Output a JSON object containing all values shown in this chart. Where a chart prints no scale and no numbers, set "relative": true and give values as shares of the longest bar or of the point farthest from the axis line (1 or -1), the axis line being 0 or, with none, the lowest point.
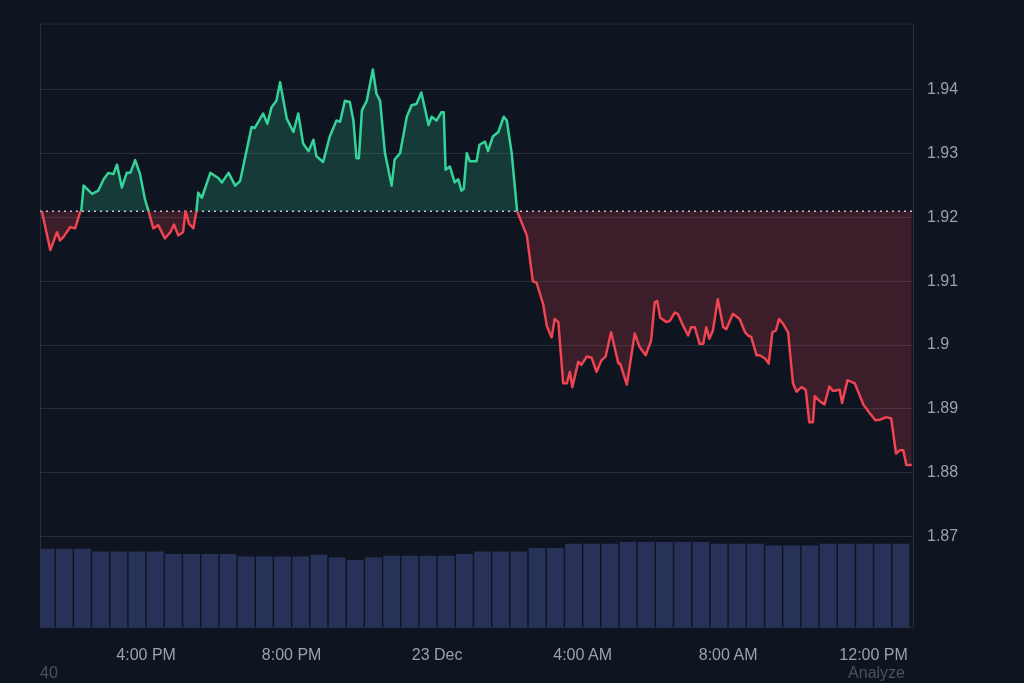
{
  "chart_data": [
    {
      "type": "line",
      "xlim": [
        "--12-22T13:05",
        "--12-23T13:05"
      ],
      "ylim": [
        1.8558,
        1.9504
      ],
      "yticks": [
        1.87,
        1.88,
        1.89,
        1.9,
        1.91,
        1.92,
        1.93,
        1.94
      ],
      "grid": "y",
      "tick_labels": "y",
      "marker": "none",
      "line_style": "solid",
      "ref_lines": [
        {
          "axis": "y",
          "value": 1.921,
          "color": "#c8ccd4",
          "line_style": "dotted"
        }
      ],
      "annotations": [
        "40",
        "Analyze"
      ],
      "x": [
        "--12-22T13:08",
        "--12-22T13:22",
        "--12-22T13:33",
        "--12-22T13:38",
        "--12-22T13:44",
        "--12-22T13:55",
        "--12-22T14:03",
        "--12-22T14:11",
        "--12-22T14:13",
        "--12-22T14:17",
        "--12-22T14:31",
        "--12-22T14:41",
        "--12-22T14:50",
        "--12-22T14:58",
        "--12-22T15:06",
        "--12-22T15:12",
        "--12-22T15:20",
        "--12-22T15:28",
        "--12-22T15:34",
        "--12-22T15:42",
        "--12-22T15:50",
        "--12-22T15:58",
        "--12-22T16:04",
        "--12-22T16:12",
        "--12-22T16:20",
        "--12-22T16:31",
        "--12-22T16:40",
        "--12-22T16:46",
        "--12-22T16:53",
        "--12-22T17:01",
        "--12-22T17:05",
        "--12-22T17:11",
        "--12-22T17:18",
        "--12-22T17:23",
        "--12-22T17:26",
        "--12-22T17:32",
        "--12-22T17:46",
        "--12-22T17:59",
        "--12-22T18:05",
        "--12-22T18:16",
        "--12-22T18:27",
        "--12-22T18:35",
        "--12-22T18:54",
        "--12-22T18:59",
        "--12-22T19:13",
        "--12-22T19:20",
        "--12-22T19:27",
        "--12-22T19:35",
        "--12-22T19:41",
        "--12-22T19:52",
        "--12-22T20:03",
        "--12-22T20:11",
        "--12-22T20:19",
        "--12-22T20:28",
        "--12-22T20:36",
        "--12-22T20:41",
        "--12-22T20:52",
        "--12-22T21:03",
        "--12-22T21:14",
        "--12-22T21:20",
        "--12-22T21:28",
        "--12-22T21:36",
        "--12-22T21:42",
        "--12-22T21:47",
        "--12-22T21:51",
        "--12-22T21:56",
        "--12-22T22:04",
        "--12-22T22:14",
        "--12-22T22:20",
        "--12-22T22:26",
        "--12-22T22:34",
        "--12-22T22:45",
        "--12-22T22:50",
        "--12-22T22:59",
        "--12-22T23:10",
        "--12-22T23:18",
        "--12-22T23:26",
        "--12-22T23:34",
        "--12-22T23:46",
        "--12-22T23:51",
        "--12-22T23:59",
        "--12-23T00:07",
        "--12-23T00:11",
        "--12-23T00:14",
        "--12-23T00:21",
        "--12-23T00:29",
        "--12-23T00:35",
        "--12-23T00:40",
        "--12-23T00:44",
        "--12-23T00:49",
        "--12-23T00:54",
        "--12-23T01:05",
        "--12-23T01:10",
        "--12-23T01:19",
        "--12-23T01:24",
        "--12-23T01:32",
        "--12-23T01:41",
        "--12-23T01:50",
        "--12-23T01:55",
        "--12-23T02:03",
        "--12-23T02:12",
        "--12-23T02:28",
        "--12-23T02:38",
        "--12-23T02:44",
        "--12-23T02:55",
        "--12-23T03:01",
        "--12-23T03:09",
        "--12-23T03:14",
        "--12-23T03:20",
        "--12-23T03:28",
        "--12-23T03:34",
        "--12-23T03:39",
        "--12-23T03:43",
        "--12-23T03:53",
        "--12-23T03:58",
        "--12-23T04:07",
        "--12-23T04:15",
        "--12-23T04:23",
        "--12-23T04:31",
        "--12-23T04:38",
        "--12-23T04:47",
        "--12-23T04:59",
        "--12-23T05:02",
        "--12-23T05:13",
        "--12-23T05:26",
        "--12-23T05:34",
        "--12-23T05:44",
        "--12-23T05:53",
        "--12-23T05:59",
        "--12-23T06:03",
        "--12-23T06:08",
        "--12-23T06:18",
        "--12-23T06:24",
        "--12-23T06:32",
        "--12-23T06:37",
        "--12-23T06:46",
        "--12-23T06:54",
        "--12-23T06:59",
        "--12-23T07:05",
        "--12-23T07:13",
        "--12-23T07:19",
        "--12-23T07:24",
        "--12-23T07:29",
        "--12-23T07:35",
        "--12-23T07:43",
        "--12-23T07:52",
        "--12-23T07:57",
        "--12-23T08:08",
        "--12-23T08:19",
        "--12-23T08:28",
        "--12-23T08:33",
        "--12-23T08:38",
        "--12-23T08:47",
        "--12-23T08:52",
        "--12-23T09:01",
        "--12-23T09:07",
        "--12-23T09:13",
        "--12-23T09:19",
        "--12-23T09:24",
        "--12-23T09:31",
        "--12-23T09:39",
        "--12-23T09:47",
        "--12-23T09:53",
        "--12-23T10:01",
        "--12-23T10:08",
        "--12-23T10:14",
        "--12-23T10:20",
        "--12-23T10:23",
        "--12-23T10:31",
        "--12-23T10:39",
        "--12-23T10:47",
        "--12-23T10:53",
        "--12-23T11:04",
        "--12-23T11:08",
        "--12-23T11:17",
        "--12-23T11:29",
        "--12-23T11:43",
        "--12-23T11:53",
        "--12-23T12:03",
        "--12-23T12:11",
        "--12-23T12:21",
        "--12-23T12:29",
        "--12-23T12:37",
        "--12-23T12:43",
        "--12-23T12:49",
        "--12-23T12:54",
        "--12-23T13:03"
      ],
      "series": [
        {
          "color": "#34d399",
          "values": [
            null,
            null,
            null,
            null,
            null,
            null,
            null,
            null,
            1.921,
            1.925,
            1.9237,
            1.9242,
            1.926,
            1.927,
            1.9268,
            1.9283,
            1.9247,
            1.927,
            1.927,
            1.929,
            1.9268,
            1.9229,
            1.921,
            null,
            null,
            null,
            null,
            null,
            null,
            null,
            null,
            null,
            null,
            1.921,
            1.9239,
            1.9231,
            1.927,
            1.9262,
            1.9255,
            1.927,
            1.925,
            1.9257,
            1.9342,
            1.934,
            1.9363,
            1.9347,
            1.9373,
            1.9383,
            1.9412,
            1.9355,
            1.9334,
            1.9363,
            1.9316,
            1.9304,
            1.9322,
            1.9296,
            1.9287,
            1.9327,
            1.9352,
            1.935,
            1.9383,
            1.9381,
            1.9352,
            1.9293,
            1.9293,
            1.9368,
            1.9383,
            1.9432,
            1.9394,
            1.9383,
            1.9301,
            1.925,
            1.9291,
            1.9301,
            1.9358,
            1.9376,
            1.9378,
            1.9396,
            1.9345,
            1.9358,
            1.9352,
            1.9365,
            1.9365,
            1.9275,
            1.928,
            1.9255,
            1.926,
            1.9242,
            1.9245,
            1.9301,
            1.9288,
            1.9288,
            1.9314,
            1.9319,
            1.9304,
            1.9327,
            1.9334,
            1.9358,
            1.9352,
            1.9301,
            1.921,
            null,
            null,
            null,
            null,
            null,
            null,
            null,
            null,
            null,
            null,
            null,
            null,
            null,
            null,
            null,
            null,
            null,
            null,
            null,
            null,
            null,
            null,
            null,
            null,
            null,
            null,
            null,
            null,
            null,
            null,
            null,
            null,
            null,
            null,
            null,
            null,
            null,
            null,
            null,
            null,
            null,
            null,
            null,
            null,
            null,
            null,
            null,
            null,
            null,
            null,
            null,
            null,
            null,
            null,
            null,
            null,
            null,
            null,
            null,
            null,
            null,
            null,
            null,
            null,
            null,
            null,
            null,
            null,
            null,
            null,
            null,
            null,
            null,
            null,
            null,
            null,
            null,
            null,
            null,
            null,
            null,
            null,
            null,
            null,
            null,
            null
          ]
        },
        {
          "color": "#ef4452",
          "values": [
            1.921,
            1.9149,
            1.9177,
            1.9164,
            1.917,
            1.9185,
            1.9183,
            1.9208,
            1.921,
            null,
            null,
            null,
            null,
            null,
            null,
            null,
            null,
            null,
            null,
            null,
            null,
            null,
            1.921,
            1.9183,
            1.9188,
            1.9167,
            1.9177,
            1.9189,
            1.9172,
            1.9177,
            1.921,
            1.919,
            1.9183,
            1.921,
            null,
            null,
            null,
            null,
            null,
            null,
            null,
            null,
            null,
            null,
            null,
            null,
            null,
            null,
            null,
            null,
            null,
            null,
            null,
            null,
            null,
            null,
            null,
            null,
            null,
            null,
            null,
            null,
            null,
            null,
            null,
            null,
            null,
            null,
            null,
            null,
            null,
            null,
            null,
            null,
            null,
            null,
            null,
            null,
            null,
            null,
            null,
            null,
            null,
            null,
            null,
            null,
            null,
            null,
            null,
            null,
            null,
            null,
            null,
            null,
            null,
            null,
            null,
            null,
            null,
            null,
            1.921,
            1.9172,
            1.91,
            1.9098,
            1.9064,
            1.903,
            1.9012,
            1.9041,
            1.9036,
            1.894,
            1.894,
            1.8958,
            1.8934,
            1.8974,
            1.8969,
            1.8982,
            1.898,
            1.8958,
            1.8976,
            1.8982,
            1.902,
            1.8971,
            1.8971,
            1.8938,
            1.9018,
            1.8997,
            1.8984,
            1.9007,
            1.9067,
            1.9069,
            1.9043,
            1.9036,
            1.9038,
            1.9051,
            1.9049,
            1.903,
            1.9015,
            1.9028,
            1.9028,
            1.9002,
            1.9002,
            1.9028,
            1.901,
            1.9023,
            1.9072,
            1.9028,
            1.9025,
            1.9049,
            1.9041,
            1.902,
            1.9015,
            1.9013,
            1.8984,
            1.8984,
            1.8979,
            1.8971,
            1.902,
            1.9023,
            1.9041,
            1.9033,
            1.902,
            1.894,
            1.8927,
            1.8934,
            1.893,
            1.8879,
            1.8879,
            1.892,
            1.8912,
            1.8907,
            1.8935,
            1.8928,
            1.893,
            1.8909,
            1.8945,
            1.894,
            1.8907,
            1.8894,
            1.8882,
            1.8883,
            1.8887,
            1.8885,
            1.883,
            1.8835,
            1.8835,
            1.8812,
            1.8812
          ]
        }
      ]
    },
    {
      "type": "bar",
      "relative": true,
      "color": "#283258",
      "xlim": [
        "--12-22T13:05",
        "--12-23T13:05"
      ],
      "tick_labels": "x",
      "xticks": [
        {
          "value": "--12-22T16:00",
          "label": "4:00 PM"
        },
        {
          "value": "--12-22T20:00",
          "label": "8:00 PM"
        },
        {
          "value": "--12-23T00:00",
          "label": "23 Dec"
        },
        {
          "value": "--12-23T04:00",
          "label": "4:00 AM"
        },
        {
          "value": "--12-23T08:00",
          "label": "8:00 AM"
        },
        {
          "value": "--12-23T12:00",
          "label": "12:00 PM"
        }
      ],
      "x": [
        "--12-22T13:15",
        "--12-22T13:45",
        "--12-22T14:15",
        "--12-22T14:45",
        "--12-22T15:15",
        "--12-22T15:45",
        "--12-22T16:15",
        "--12-22T16:45",
        "--12-22T17:15",
        "--12-22T17:45",
        "--12-22T18:15",
        "--12-22T18:45",
        "--12-22T19:15",
        "--12-22T19:45",
        "--12-22T20:15",
        "--12-22T20:45",
        "--12-22T21:15",
        "--12-22T21:45",
        "--12-22T22:15",
        "--12-22T22:45",
        "--12-22T23:15",
        "--12-22T23:45",
        "--12-23T00:15",
        "--12-23T00:45",
        "--12-23T01:15",
        "--12-23T01:45",
        "--12-23T02:15",
        "--12-23T02:45",
        "--12-23T03:15",
        "--12-23T03:45",
        "--12-23T04:15",
        "--12-23T04:45",
        "--12-23T05:15",
        "--12-23T05:45",
        "--12-23T06:15",
        "--12-23T06:45",
        "--12-23T07:15",
        "--12-23T07:45",
        "--12-23T08:15",
        "--12-23T08:45",
        "--12-23T09:15",
        "--12-23T09:45",
        "--12-23T10:15",
        "--12-23T10:45",
        "--12-23T11:15",
        "--12-23T11:45",
        "--12-23T12:15",
        "--12-23T12:45"
      ],
      "values": [
        0.92,
        0.92,
        0.92,
        0.89,
        0.89,
        0.89,
        0.89,
        0.86,
        0.86,
        0.86,
        0.86,
        0.83,
        0.83,
        0.83,
        0.83,
        0.85,
        0.82,
        0.79,
        0.82,
        0.84,
        0.84,
        0.84,
        0.84,
        0.86,
        0.89,
        0.89,
        0.89,
        0.93,
        0.93,
        0.98,
        0.98,
        0.98,
        1,
        1,
        1,
        1,
        1,
        0.98,
        0.98,
        0.98,
        0.96,
        0.96,
        0.96,
        0.98,
        0.98,
        0.98,
        0.98,
        0.98
      ]
    }
  ]
}
